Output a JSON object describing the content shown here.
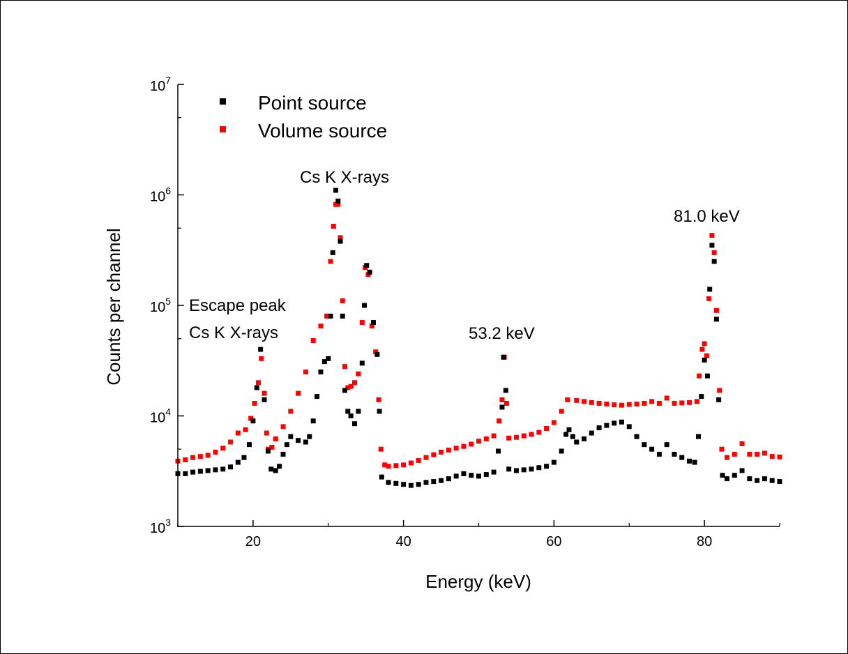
{
  "chart_data": {
    "type": "scatter",
    "xlabel": "Energy (keV)",
    "ylabel": "Counts per channel",
    "xlim": [
      10,
      90
    ],
    "ylim": [
      1000,
      10000000
    ],
    "yscale": "log",
    "x_ticks": [
      20,
      40,
      60,
      80
    ],
    "y_ticks": [
      {
        "base": "10",
        "exp": "3",
        "value": 1000
      },
      {
        "base": "10",
        "exp": "4",
        "value": 10000
      },
      {
        "base": "10",
        "exp": "5",
        "value": 100000
      },
      {
        "base": "10",
        "exp": "6",
        "value": 1000000
      },
      {
        "base": "10",
        "exp": "7",
        "value": 10000000
      }
    ],
    "legend_position": "top-left",
    "grid": false,
    "annotations": [
      {
        "id": "escape",
        "lines": [
          "Escape peak",
          "Cs K X-rays"
        ]
      },
      {
        "id": "csk",
        "lines": [
          "Cs K X-rays"
        ]
      },
      {
        "id": "p53",
        "lines": [
          "53.2 keV"
        ]
      },
      {
        "id": "p81",
        "lines": [
          "81.0 keV"
        ]
      }
    ],
    "series": [
      {
        "name": "Point source",
        "color": "#000000",
        "points": [
          [
            10,
            3000
          ],
          [
            11,
            3000
          ],
          [
            12,
            3100
          ],
          [
            13,
            3150
          ],
          [
            14,
            3200
          ],
          [
            15,
            3250
          ],
          [
            16,
            3300
          ],
          [
            17,
            3450
          ],
          [
            18,
            3800
          ],
          [
            18.8,
            4200
          ],
          [
            19.5,
            5500
          ],
          [
            20,
            9000
          ],
          [
            20.5,
            18000
          ],
          [
            21,
            40000
          ],
          [
            21.5,
            14000
          ],
          [
            22,
            4800
          ],
          [
            22.4,
            3300
          ],
          [
            23,
            3200
          ],
          [
            23.5,
            3500
          ],
          [
            24,
            4500
          ],
          [
            24.5,
            5500
          ],
          [
            25,
            6500
          ],
          [
            26,
            6000
          ],
          [
            27,
            5800
          ],
          [
            27.5,
            6500
          ],
          [
            28,
            9000
          ],
          [
            28.5,
            15000
          ],
          [
            29,
            25000
          ],
          [
            29.5,
            31000
          ],
          [
            30,
            33000
          ],
          [
            30.3,
            80000
          ],
          [
            30.6,
            300000
          ],
          [
            31,
            1100000
          ],
          [
            31.3,
            880000
          ],
          [
            31.6,
            380000
          ],
          [
            31.9,
            80000
          ],
          [
            32.2,
            17000
          ],
          [
            32.6,
            11000
          ],
          [
            33,
            10000
          ],
          [
            33.5,
            8500
          ],
          [
            34,
            11000
          ],
          [
            34.5,
            30000
          ],
          [
            34.8,
            100000
          ],
          [
            35.1,
            230000
          ],
          [
            35.5,
            200000
          ],
          [
            36,
            70000
          ],
          [
            36.5,
            36000
          ],
          [
            36.8,
            11000
          ],
          [
            37.1,
            2800
          ],
          [
            38,
            2500
          ],
          [
            39,
            2450
          ],
          [
            40,
            2400
          ],
          [
            41,
            2350
          ],
          [
            42,
            2400
          ],
          [
            43,
            2500
          ],
          [
            44,
            2550
          ],
          [
            45,
            2600
          ],
          [
            46,
            2700
          ],
          [
            47,
            2850
          ],
          [
            48,
            3000
          ],
          [
            49,
            2900
          ],
          [
            50,
            2850
          ],
          [
            51,
            2950
          ],
          [
            52,
            3100
          ],
          [
            52.6,
            4800
          ],
          [
            53.1,
            12000
          ],
          [
            53.3,
            34000
          ],
          [
            53.6,
            17000
          ],
          [
            54,
            3300
          ],
          [
            55,
            3200
          ],
          [
            56,
            3250
          ],
          [
            57,
            3300
          ],
          [
            58,
            3400
          ],
          [
            59,
            3500
          ],
          [
            60,
            3800
          ],
          [
            61,
            4800
          ],
          [
            61.6,
            6800
          ],
          [
            62,
            7500
          ],
          [
            62.5,
            6500
          ],
          [
            63,
            5800
          ],
          [
            64,
            6200
          ],
          [
            65,
            7000
          ],
          [
            66,
            7800
          ],
          [
            67,
            8200
          ],
          [
            68,
            8600
          ],
          [
            69,
            8800
          ],
          [
            70,
            8000
          ],
          [
            71,
            6500
          ],
          [
            72,
            5500
          ],
          [
            73,
            5000
          ],
          [
            74,
            4500
          ],
          [
            75,
            5500
          ],
          [
            76,
            4500
          ],
          [
            77,
            4200
          ],
          [
            78,
            3900
          ],
          [
            78.7,
            3800
          ],
          [
            79.2,
            6500
          ],
          [
            79.6,
            15000
          ],
          [
            80,
            32000
          ],
          [
            80.4,
            23000
          ],
          [
            80.7,
            140000
          ],
          [
            81,
            350000
          ],
          [
            81.3,
            250000
          ],
          [
            81.6,
            75000
          ],
          [
            81.9,
            14000
          ],
          [
            82.4,
            2900
          ],
          [
            83,
            2700
          ],
          [
            84,
            2900
          ],
          [
            85,
            3200
          ],
          [
            86,
            2700
          ],
          [
            87,
            2600
          ],
          [
            88,
            2700
          ],
          [
            89,
            2600
          ],
          [
            90,
            2550
          ]
        ]
      },
      {
        "name": "Volume source",
        "color": "#ff0000",
        "points": [
          [
            10,
            3900
          ],
          [
            11,
            4000
          ],
          [
            12,
            4200
          ],
          [
            13,
            4300
          ],
          [
            14,
            4400
          ],
          [
            15,
            4700
          ],
          [
            16,
            5100
          ],
          [
            17,
            5800
          ],
          [
            18,
            7000
          ],
          [
            19,
            7500
          ],
          [
            19.7,
            9500
          ],
          [
            20.2,
            13000
          ],
          [
            20.7,
            20000
          ],
          [
            21.1,
            33000
          ],
          [
            21.5,
            16000
          ],
          [
            21.8,
            7000
          ],
          [
            22,
            5000
          ],
          [
            22.5,
            5200
          ],
          [
            23,
            6200
          ],
          [
            24,
            8000
          ],
          [
            25,
            11000
          ],
          [
            26,
            16000
          ],
          [
            27,
            25000
          ],
          [
            28,
            48000
          ],
          [
            29,
            65000
          ],
          [
            29.8,
            80000
          ],
          [
            30.3,
            250000
          ],
          [
            30.7,
            520000
          ],
          [
            31,
            820000
          ],
          [
            31.3,
            820000
          ],
          [
            31.6,
            410000
          ],
          [
            31.9,
            110000
          ],
          [
            32.2,
            28000
          ],
          [
            32.6,
            18000
          ],
          [
            33,
            18500
          ],
          [
            33.5,
            20000
          ],
          [
            34,
            24000
          ],
          [
            34.5,
            70000
          ],
          [
            34.9,
            220000
          ],
          [
            35.3,
            190000
          ],
          [
            35.8,
            65000
          ],
          [
            36.3,
            38000
          ],
          [
            36.7,
            14000
          ],
          [
            37,
            5000
          ],
          [
            37.5,
            3600
          ],
          [
            38,
            3500
          ],
          [
            39,
            3550
          ],
          [
            40,
            3600
          ],
          [
            41,
            3750
          ],
          [
            42,
            3950
          ],
          [
            43,
            4200
          ],
          [
            44,
            4450
          ],
          [
            45,
            4700
          ],
          [
            46,
            4900
          ],
          [
            47,
            5100
          ],
          [
            48,
            5300
          ],
          [
            49,
            5550
          ],
          [
            50,
            5900
          ],
          [
            51,
            6200
          ],
          [
            52,
            6600
          ],
          [
            52.7,
            9000
          ],
          [
            53.1,
            14000
          ],
          [
            53.4,
            34000
          ],
          [
            53.7,
            13000
          ],
          [
            54,
            6300
          ],
          [
            55,
            6400
          ],
          [
            56,
            6600
          ],
          [
            57,
            6800
          ],
          [
            58,
            7100
          ],
          [
            59,
            7700
          ],
          [
            60,
            8700
          ],
          [
            61,
            11000
          ],
          [
            61.8,
            14000
          ],
          [
            63,
            13800
          ],
          [
            64,
            13500
          ],
          [
            65,
            13200
          ],
          [
            66,
            13000
          ],
          [
            67,
            12800
          ],
          [
            68,
            12600
          ],
          [
            69,
            12500
          ],
          [
            70,
            12700
          ],
          [
            71,
            12800
          ],
          [
            72,
            13000
          ],
          [
            73,
            13500
          ],
          [
            74,
            13000
          ],
          [
            75,
            14500
          ],
          [
            76,
            13000
          ],
          [
            77,
            13100
          ],
          [
            78,
            13200
          ],
          [
            79,
            13500
          ],
          [
            79.3,
            23000
          ],
          [
            79.7,
            40000
          ],
          [
            80,
            45000
          ],
          [
            80.3,
            35000
          ],
          [
            80.6,
            115000
          ],
          [
            81,
            430000
          ],
          [
            81.3,
            300000
          ],
          [
            81.6,
            90000
          ],
          [
            82,
            17000
          ],
          [
            82.3,
            5000
          ],
          [
            83,
            4200
          ],
          [
            84,
            4500
          ],
          [
            85,
            5600
          ],
          [
            86,
            4500
          ],
          [
            87,
            4500
          ],
          [
            88,
            4600
          ],
          [
            89,
            4300
          ],
          [
            90,
            4250
          ]
        ]
      }
    ]
  }
}
